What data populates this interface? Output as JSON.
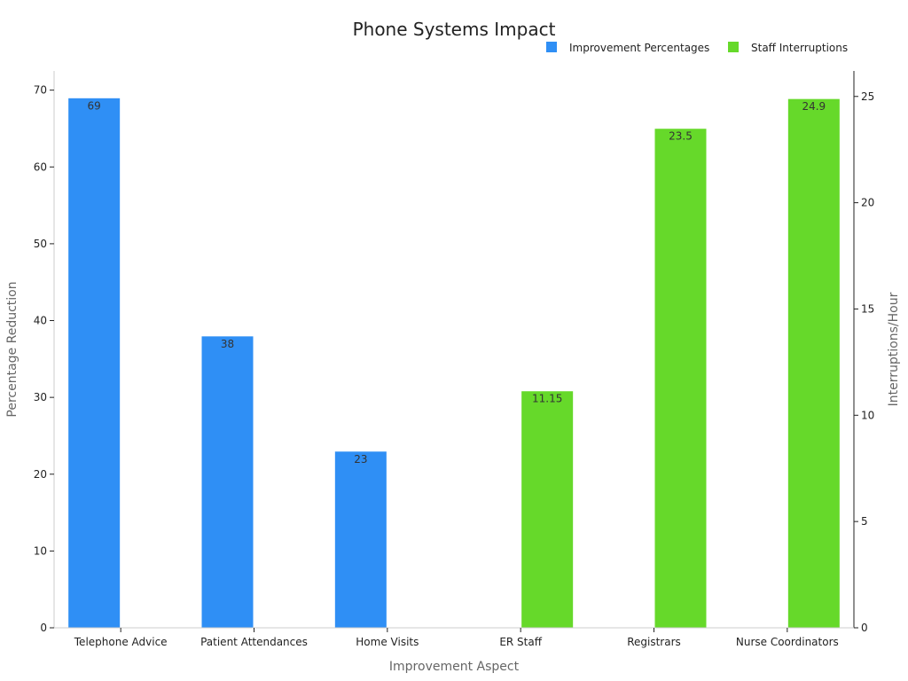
{
  "chart_data": {
    "type": "bar",
    "title": "Phone Systems Impact",
    "xlabel": "Improvement Aspect",
    "ylabel": "Percentage Reduction",
    "y2label": "Interruptions/Hour",
    "categories": [
      "Telephone Advice",
      "Patient Attendances",
      "Home Visits",
      "ER Staff",
      "Registrars",
      "Nurse Coordinators"
    ],
    "ylim": [
      0,
      72.5
    ],
    "y2lim": [
      0,
      26.2
    ],
    "yticks": [
      0,
      10,
      20,
      30,
      40,
      50,
      60,
      70
    ],
    "y2ticks": [
      0,
      5,
      10,
      15,
      20,
      25
    ],
    "legend_position": "top-right",
    "grid": false,
    "series": [
      {
        "name": "Improvement Percentages",
        "axis": "left",
        "color": "#2f8ff5",
        "values": [
          69,
          38,
          23,
          null,
          null,
          null
        ],
        "labels": [
          "69",
          "38",
          "23",
          "",
          "",
          ""
        ]
      },
      {
        "name": "Staff Interruptions",
        "axis": "right",
        "color": "#66d92a",
        "values": [
          null,
          null,
          null,
          11.15,
          23.5,
          24.9
        ],
        "labels": [
          "",
          "",
          "",
          "11.15",
          "23.5",
          "24.9"
        ]
      }
    ]
  }
}
